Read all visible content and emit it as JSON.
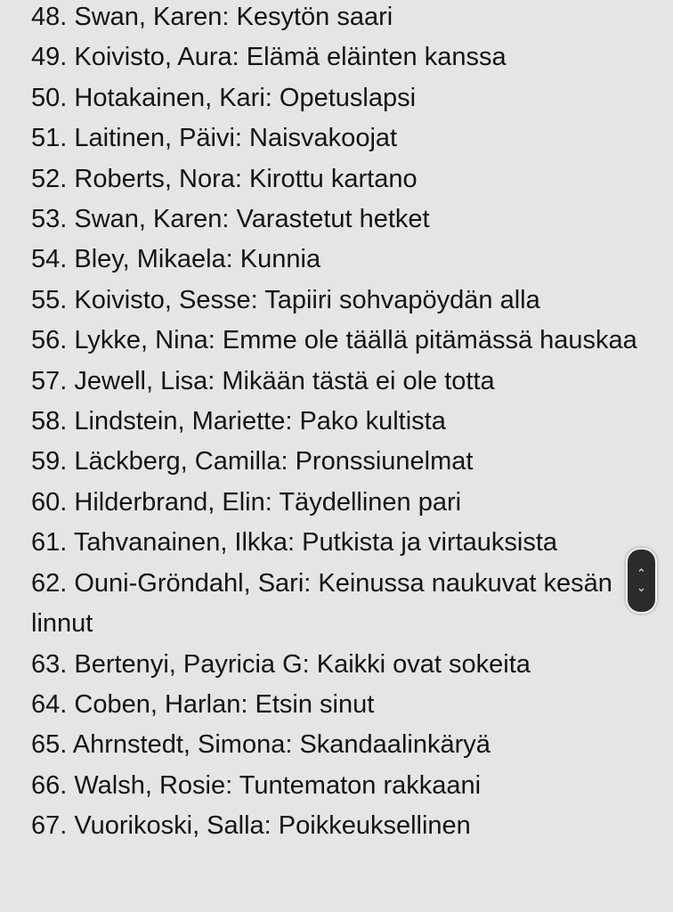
{
  "items": [
    "48. Swan, Karen: Kesytön saari",
    "49. Koivisto, Aura: Elämä eläinten kanssa",
    "50. Hotakainen, Kari: Opetuslapsi",
    "51. Laitinen, Päivi: Naisvakoojat",
    "52. Roberts, Nora: Kirottu kartano",
    "53. Swan, Karen: Varastetut hetket",
    "54. Bley, Mikaela: Kunnia",
    "55. Koivisto, Sesse: Tapiiri sohvapöydän alla",
    "56. Lykke, Nina: Emme ole täällä pitämässä hauskaa",
    "57. Jewell, Lisa: Mikään tästä ei ole totta",
    "58. Lindstein, Mariette: Pako kultista",
    "59. Läckberg, Camilla: Pronssiunelmat",
    "60. Hilderbrand, Elin: Täydellinen pari",
    "61. Tahvanainen, Ilkka: Putkista ja virtauksista",
    "62. Ouni-Gröndahl, Sari: Keinussa naukuvat kesän linnut",
    "63. Bertenyi, Payricia G: Kaikki ovat sokeita",
    "64. Coben, Harlan: Etsin sinut",
    "65. Ahrnstedt, Simona: Skandaalinkäryä",
    "66. Walsh, Rosie: Tuntematon rakkaani",
    "67. Vuorikoski, Salla: Poikkeuksellinen"
  ],
  "scroll_handle": {
    "up_icon": "chevron-up-icon",
    "down_icon": "chevron-down-icon"
  }
}
